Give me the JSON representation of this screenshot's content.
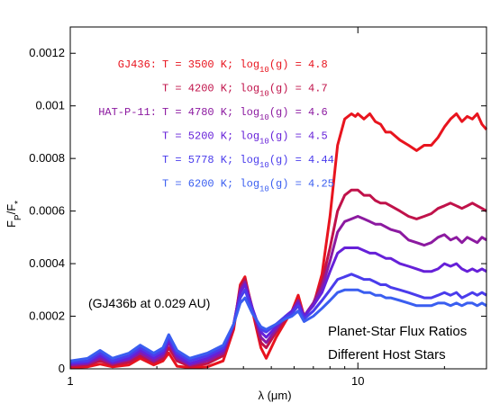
{
  "chart_data": {
    "type": "line",
    "xscale": "log",
    "xlim": [
      1,
      28
    ],
    "ylim": [
      0,
      0.0013
    ],
    "xlabel": "λ (μm)",
    "ylabel": "F_P/F_*",
    "x_ticks": [
      {
        "value": 1,
        "label": "1"
      },
      {
        "value": 10,
        "label": "10"
      }
    ],
    "y_ticks": [
      {
        "value": 0,
        "label": "0"
      },
      {
        "value": 0.0002,
        "label": "0.0002"
      },
      {
        "value": 0.0004,
        "label": "0.0004"
      },
      {
        "value": 0.0006,
        "label": "0.0006"
      },
      {
        "value": 0.0008,
        "label": "0.0008"
      },
      {
        "value": 0.001,
        "label": "0.001"
      },
      {
        "value": 0.0012,
        "label": "0.0012"
      }
    ],
    "annotation_1": "(GJ436b at 0.029 AU)",
    "annotation_2_line1": "Planet-Star Flux Ratios",
    "annotation_2_line2": "Different Host Stars",
    "legend": [
      {
        "prefix": "GJ436:",
        "text": "T = 3500 K; log",
        "sub": "10",
        "suffix": "(g) = 4.8",
        "color": "#e8141e"
      },
      {
        "prefix": "",
        "text": "T = 4200 K; log",
        "sub": "10",
        "suffix": "(g) = 4.7",
        "color": "#c0124a"
      },
      {
        "prefix": "HAT-P-11:",
        "text": "T = 4780 K; log",
        "sub": "10",
        "suffix": "(g) = 4.6",
        "color": "#8c1aa0"
      },
      {
        "prefix": "",
        "text": "T = 5200 K; log",
        "sub": "10",
        "suffix": "(g) = 4.5",
        "color": "#6620d8"
      },
      {
        "prefix": "",
        "text": "T = 5778 K; log",
        "sub": "10",
        "suffix": "(g) = 4.44",
        "color": "#4a3cec"
      },
      {
        "prefix": "",
        "text": "T = 6200 K; log",
        "sub": "10",
        "suffix": "(g) = 4.25",
        "color": "#3a5ef0"
      }
    ],
    "series": [
      {
        "color": "#e8141e",
        "x": [
          1.0,
          1.15,
          1.27,
          1.4,
          1.6,
          1.75,
          1.95,
          2.1,
          2.2,
          2.35,
          2.6,
          3.0,
          3.4,
          3.7,
          3.9,
          4.05,
          4.3,
          4.6,
          4.8,
          5.2,
          5.6,
          5.9,
          6.2,
          6.5,
          7.0,
          7.5,
          8.0,
          8.5,
          9.0,
          9.5,
          9.8,
          10.0,
          10.5,
          11.0,
          11.5,
          12.0,
          12.5,
          13.0,
          14.0,
          15.0,
          16.0,
          17.0,
          18.0,
          19.0,
          20.0,
          21.0,
          22.0,
          23.0,
          24.0,
          25.0,
          26.0,
          27.0,
          28.0
        ],
        "y": [
          5e-06,
          8e-06,
          1.8e-05,
          8e-06,
          1.5e-05,
          4e-05,
          1.5e-05,
          3e-05,
          6e-05,
          1e-05,
          5e-06,
          8e-06,
          3e-05,
          0.00015,
          0.00032,
          0.00035,
          0.00022,
          8e-05,
          4e-05,
          0.00012,
          0.00018,
          0.00022,
          0.00028,
          0.0002,
          0.00024,
          0.00036,
          0.00058,
          0.00085,
          0.00095,
          0.00097,
          0.00096,
          0.00097,
          0.00095,
          0.00097,
          0.00094,
          0.00093,
          0.0009,
          0.0009,
          0.00087,
          0.00085,
          0.00083,
          0.00085,
          0.00085,
          0.00088,
          0.00092,
          0.00095,
          0.00097,
          0.00094,
          0.00096,
          0.00095,
          0.00097,
          0.00093,
          0.00091
        ]
      },
      {
        "color": "#c0124a",
        "x": [
          1.0,
          1.15,
          1.27,
          1.4,
          1.6,
          1.75,
          1.95,
          2.1,
          2.2,
          2.35,
          2.6,
          3.0,
          3.4,
          3.7,
          3.9,
          4.05,
          4.3,
          4.6,
          4.8,
          5.2,
          5.6,
          5.9,
          6.2,
          6.5,
          7.0,
          7.5,
          8.0,
          8.5,
          9.0,
          9.5,
          10.0,
          10.5,
          11.0,
          11.5,
          12.0,
          12.5,
          13.0,
          14.0,
          15.0,
          16.0,
          17.0,
          18.0,
          19.0,
          20.0,
          21.0,
          22.0,
          23.0,
          24.0,
          25.0,
          26.0,
          27.0,
          28.0
        ],
        "y": [
          1e-05,
          1.5e-05,
          3e-05,
          1.5e-05,
          2.5e-05,
          5e-05,
          2.5e-05,
          4e-05,
          8e-05,
          3e-05,
          1e-05,
          2e-05,
          5e-05,
          0.00016,
          0.00031,
          0.00034,
          0.00023,
          0.0001,
          8e-05,
          0.00014,
          0.00019,
          0.00021,
          0.00026,
          0.0002,
          0.00025,
          0.00033,
          0.00046,
          0.0006,
          0.00066,
          0.00068,
          0.00068,
          0.00066,
          0.00066,
          0.00064,
          0.00063,
          0.00063,
          0.00062,
          0.0006,
          0.00058,
          0.00057,
          0.00058,
          0.00059,
          0.00061,
          0.00062,
          0.00063,
          0.00062,
          0.00061,
          0.00062,
          0.00063,
          0.00062,
          0.00061,
          0.0006
        ]
      },
      {
        "color": "#8c1aa0",
        "x": [
          1.0,
          1.15,
          1.27,
          1.4,
          1.6,
          1.75,
          1.95,
          2.1,
          2.2,
          2.35,
          2.6,
          3.0,
          3.4,
          3.7,
          3.9,
          4.05,
          4.3,
          4.6,
          4.8,
          5.2,
          5.6,
          5.9,
          6.2,
          6.5,
          7.0,
          7.5,
          8.0,
          8.5,
          9.0,
          9.5,
          10.0,
          10.5,
          11.0,
          11.5,
          12.0,
          12.5,
          13.0,
          14.0,
          15.0,
          16.0,
          17.0,
          18.0,
          19.0,
          20.0,
          21.0,
          22.0,
          23.0,
          24.0,
          25.0,
          26.0,
          27.0,
          28.0
        ],
        "y": [
          1.5e-05,
          2e-05,
          4e-05,
          2e-05,
          3.5e-05,
          6e-05,
          3e-05,
          5e-05,
          0.0001,
          4e-05,
          1.5e-05,
          3e-05,
          6e-05,
          0.00017,
          0.0003,
          0.00033,
          0.00023,
          0.00012,
          0.0001,
          0.00015,
          0.0002,
          0.00022,
          0.00026,
          0.0002,
          0.00025,
          0.00031,
          0.00041,
          0.00052,
          0.00056,
          0.00057,
          0.00058,
          0.00057,
          0.00056,
          0.00055,
          0.00055,
          0.00054,
          0.00053,
          0.00052,
          0.00049,
          0.00048,
          0.00047,
          0.00048,
          0.0005,
          0.00051,
          0.00049,
          0.0005,
          0.00048,
          0.0005,
          0.00049,
          0.00048,
          0.0005,
          0.00049
        ]
      },
      {
        "color": "#6620d8",
        "x": [
          1.0,
          1.15,
          1.27,
          1.4,
          1.6,
          1.75,
          1.95,
          2.1,
          2.2,
          2.35,
          2.6,
          3.0,
          3.4,
          3.7,
          3.9,
          4.05,
          4.3,
          4.6,
          4.8,
          5.2,
          5.6,
          5.9,
          6.2,
          6.5,
          7.0,
          7.5,
          8.0,
          8.5,
          9.0,
          9.5,
          10.0,
          10.5,
          11.0,
          11.5,
          12.0,
          12.5,
          13.0,
          14.0,
          15.0,
          16.0,
          17.0,
          18.0,
          19.0,
          20.0,
          21.0,
          22.0,
          23.0,
          24.0,
          25.0,
          26.0,
          27.0,
          28.0
        ],
        "y": [
          2e-05,
          2.5e-05,
          5e-05,
          2.5e-05,
          4e-05,
          7e-05,
          4e-05,
          6e-05,
          0.00011,
          5e-05,
          2e-05,
          4e-05,
          7e-05,
          0.00017,
          0.00029,
          0.00032,
          0.00023,
          0.00014,
          0.00012,
          0.00016,
          0.0002,
          0.00022,
          0.00025,
          0.0002,
          0.00024,
          0.00029,
          0.00037,
          0.00044,
          0.00046,
          0.00046,
          0.00046,
          0.00045,
          0.00044,
          0.00044,
          0.00043,
          0.00042,
          0.00042,
          0.0004,
          0.00039,
          0.00038,
          0.00037,
          0.00037,
          0.00038,
          0.0004,
          0.00039,
          0.0004,
          0.00038,
          0.00037,
          0.00038,
          0.00037,
          0.00038,
          0.00037
        ]
      },
      {
        "color": "#4a3cec",
        "x": [
          1.0,
          1.15,
          1.27,
          1.4,
          1.6,
          1.75,
          1.95,
          2.1,
          2.2,
          2.35,
          2.6,
          3.0,
          3.4,
          3.7,
          3.9,
          4.05,
          4.3,
          4.6,
          4.8,
          5.2,
          5.6,
          5.9,
          6.2,
          6.5,
          7.0,
          7.5,
          8.0,
          8.5,
          9.0,
          9.5,
          10.0,
          10.5,
          11.0,
          11.5,
          12.0,
          12.5,
          13.0,
          14.0,
          15.0,
          16.0,
          17.0,
          18.0,
          19.0,
          20.0,
          21.0,
          22.0,
          23.0,
          24.0,
          25.0,
          26.0,
          27.0,
          28.0
        ],
        "y": [
          2.5e-05,
          3e-05,
          6e-05,
          3e-05,
          5e-05,
          8e-05,
          5e-05,
          7e-05,
          0.00012,
          6e-05,
          3e-05,
          5e-05,
          8e-05,
          0.00017,
          0.00027,
          0.0003,
          0.00022,
          0.00015,
          0.00014,
          0.00017,
          0.0002,
          0.00021,
          0.00024,
          0.00019,
          0.00022,
          0.00026,
          0.0003,
          0.00034,
          0.00035,
          0.00036,
          0.00035,
          0.00034,
          0.00034,
          0.00033,
          0.00032,
          0.00032,
          0.00031,
          0.0003,
          0.00029,
          0.00028,
          0.00027,
          0.00027,
          0.00028,
          0.00029,
          0.00028,
          0.00029,
          0.00027,
          0.00028,
          0.00029,
          0.00028,
          0.00029,
          0.00028
        ]
      },
      {
        "color": "#3a5ef0",
        "x": [
          1.0,
          1.15,
          1.27,
          1.4,
          1.6,
          1.75,
          1.95,
          2.1,
          2.2,
          2.35,
          2.6,
          3.0,
          3.4,
          3.7,
          3.9,
          4.05,
          4.3,
          4.6,
          4.8,
          5.2,
          5.6,
          5.9,
          6.2,
          6.5,
          7.0,
          7.5,
          8.0,
          8.5,
          9.0,
          9.5,
          10.0,
          10.5,
          11.0,
          11.5,
          12.0,
          12.5,
          13.0,
          14.0,
          15.0,
          16.0,
          17.0,
          18.0,
          19.0,
          20.0,
          21.0,
          22.0,
          23.0,
          24.0,
          25.0,
          26.0,
          27.0,
          28.0
        ],
        "y": [
          3e-05,
          4e-05,
          7e-05,
          4e-05,
          6e-05,
          9e-05,
          6e-05,
          8e-05,
          0.00013,
          7e-05,
          4e-05,
          6e-05,
          9e-05,
          0.00017,
          0.00025,
          0.00027,
          0.00021,
          0.00016,
          0.00015,
          0.00017,
          0.00019,
          0.0002,
          0.00022,
          0.00018,
          0.0002,
          0.00023,
          0.00026,
          0.00029,
          0.0003,
          0.0003,
          0.0003,
          0.00029,
          0.00029,
          0.00028,
          0.00028,
          0.00027,
          0.00027,
          0.00026,
          0.00025,
          0.00024,
          0.00024,
          0.00024,
          0.00025,
          0.00025,
          0.00024,
          0.00025,
          0.00024,
          0.00025,
          0.00025,
          0.00024,
          0.00025,
          0.00024
        ]
      }
    ]
  }
}
